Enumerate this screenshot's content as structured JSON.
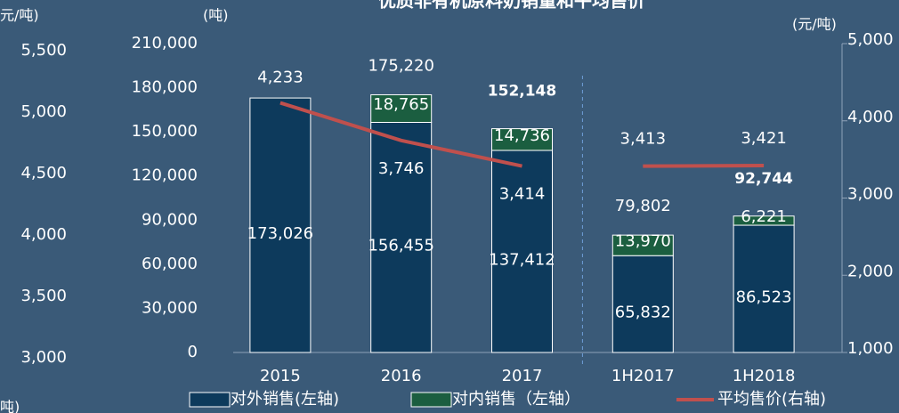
{
  "chart_data": {
    "type": "bar",
    "stacked": true,
    "title": "优质非有机原料奶销量和平均售价",
    "y_label": "(吨)",
    "y2_label": "(元/吨)",
    "categories": [
      "2015",
      "2016",
      "2017",
      "1H2017",
      "1H2018"
    ],
    "series": [
      {
        "name": "对外销售(左轴)",
        "color": "#0d3a5c",
        "values": [
          173026,
          156455,
          137412,
          65832,
          86523
        ],
        "value_labels": [
          "173,026",
          "156,455",
          "137,412",
          "65,832",
          "86,523"
        ]
      },
      {
        "name": "对内销售（左轴）",
        "color": "#1b5e40",
        "values": [
          null,
          18765,
          14736,
          13970,
          6221
        ],
        "value_labels": [
          null,
          "18,765",
          "14,736",
          "13,970",
          "6,221"
        ]
      },
      {
        "name": "平均售价(右轴)",
        "type": "line",
        "axis": "y2",
        "color": "#c0504d",
        "values": [
          4233,
          3746,
          3414,
          3413,
          3421
        ],
        "value_labels": [
          "4,233",
          "3,746",
          "3,414",
          "3,413",
          "3,421"
        ]
      }
    ],
    "totals": {
      "values": [
        null,
        175220,
        152148,
        79802,
        92744
      ],
      "value_labels": [
        null,
        "175,220",
        "152,148",
        "79,802",
        "92,744"
      ]
    },
    "divider_after": 2,
    "ylim": [
      0,
      210000
    ],
    "yticks": [
      0,
      {
        "value": 30000,
        "label": "30,000"
      },
      {
        "value": 60000,
        "label": "60,000"
      },
      {
        "value": 90000,
        "label": "90,000"
      },
      {
        "value": 120000,
        "label": "120,000"
      },
      {
        "value": 150000,
        "label": "150,000"
      },
      {
        "value": 180000,
        "label": "180,000"
      },
      {
        "value": 210000,
        "label": "210,000"
      }
    ],
    "y2lim": [
      1000,
      5000
    ],
    "y2ticks": [
      {
        "value": 1000,
        "label": "1,000"
      },
      {
        "value": 2000,
        "label": "2,000"
      },
      {
        "value": 3000,
        "label": "3,000"
      },
      {
        "value": 4000,
        "label": "4,000"
      },
      {
        "value": 5000,
        "label": "5,000"
      }
    ],
    "side_axis": {
      "label": "元/吨)",
      "bottom_label": "吨)",
      "lim": [
        3000,
        5500
      ],
      "ticks": [
        {
          "value": 3000,
          "label": "3,000"
        },
        {
          "value": 3500,
          "label": "3,500"
        },
        {
          "value": 4000,
          "label": "4,000"
        },
        {
          "value": 4500,
          "label": "4,500"
        },
        {
          "value": 5000,
          "label": "5,000"
        },
        {
          "value": 5500,
          "label": "5,500"
        }
      ]
    }
  }
}
